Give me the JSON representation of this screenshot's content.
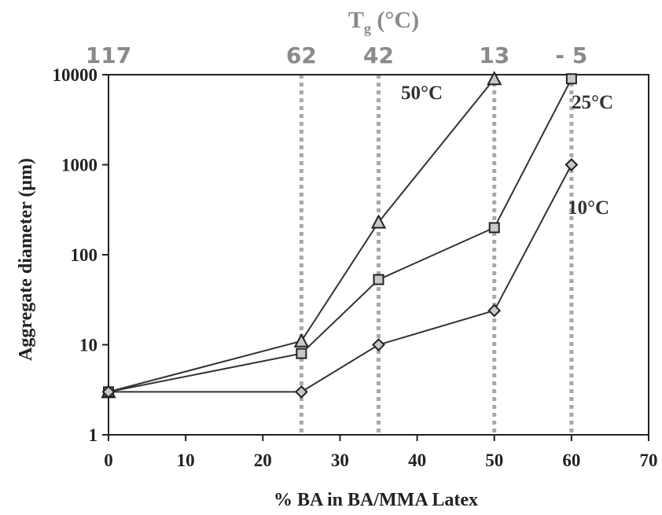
{
  "chart_data": {
    "type": "line",
    "xlabel": "% BA in BA/MMA Latex",
    "ylabel": "Aggregate diameter (μm)",
    "xlim": [
      0,
      70
    ],
    "ylim": [
      1,
      10000
    ],
    "yscale": "log",
    "grid": false,
    "x_ticks": [
      "0",
      "10",
      "20",
      "30",
      "40",
      "50",
      "60",
      "70"
    ],
    "y_ticks": [
      "1",
      "10",
      "100",
      "1000",
      "10000"
    ],
    "top_axis": {
      "title_main": "T",
      "title_sub": "g",
      "title_rest": " (°C)",
      "ticks": [
        {
          "x": 0,
          "label": "117"
        },
        {
          "x": 25,
          "label": "62"
        },
        {
          "x": 35,
          "label": "42"
        },
        {
          "x": 50,
          "label": "13"
        },
        {
          "x": 60,
          "label": "- 5"
        }
      ]
    },
    "reference_lines_x": [
      25,
      35,
      50,
      60
    ],
    "series": [
      {
        "name": "50°C",
        "marker": "triangle",
        "x": [
          0,
          25,
          35,
          50
        ],
        "y": [
          3,
          11,
          230,
          9000
        ]
      },
      {
        "name": "25°C",
        "marker": "square",
        "x": [
          0,
          25,
          35,
          50,
          60
        ],
        "y": [
          3,
          8,
          53,
          200,
          9000
        ]
      },
      {
        "name": "10°C",
        "marker": "diamond",
        "x": [
          0,
          25,
          35,
          50,
          60
        ],
        "y": [
          3,
          3,
          10,
          24,
          1000
        ]
      }
    ],
    "colors": {
      "line": "#333333",
      "marker_fill": "#c8c8c8",
      "axis": "#222222",
      "top_axis": "#8a8a8a",
      "guide": "#a8a8a8"
    }
  }
}
